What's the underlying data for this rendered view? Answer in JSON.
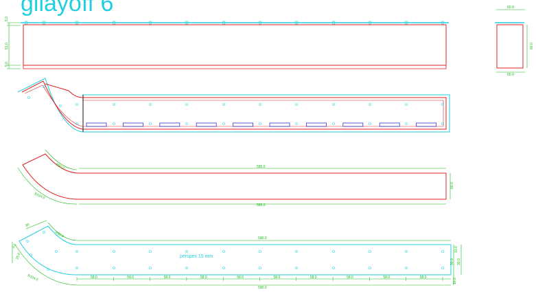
{
  "title": "gilayoff 6",
  "colors": {
    "outline": "#e02020",
    "cyan": "#22cfe0",
    "dimension": "#16b816",
    "slot": "#3030d0",
    "black": "#111111"
  },
  "dims": {
    "front_left_top": "5.0",
    "front_left_mid": "51.0",
    "front_left_bot": "5.0",
    "side_top": "60.0",
    "side_bottom": "60.0",
    "side_right": "60.0",
    "profile_arc_inner": "R90.0",
    "profile_arc_outer": "R104.0",
    "profile_top_length": "585.0",
    "profile_bottom_length": "585.0",
    "profile_height": "60.0",
    "plate_angle": "90",
    "plate_arc_inner": "R90.0",
    "plate_left_a": "3.0",
    "plate_left_b": "25.0",
    "plate_arc_outer": "R104.0",
    "plate_top_length": "590.0",
    "plate_bottom_length": "590.0",
    "plate_right_top": "10.0",
    "plate_right_mid1": "30.0",
    "plate_right_mid2": "30.0",
    "plate_right_bot": "10.0",
    "plate_spacing": [
      "58.0",
      "58.0",
      "58.0",
      "58.0",
      "58.0",
      "58.0",
      "58.0",
      "58.0",
      "58.0",
      "58.0"
    ]
  },
  "note": "perspex 15 mm"
}
